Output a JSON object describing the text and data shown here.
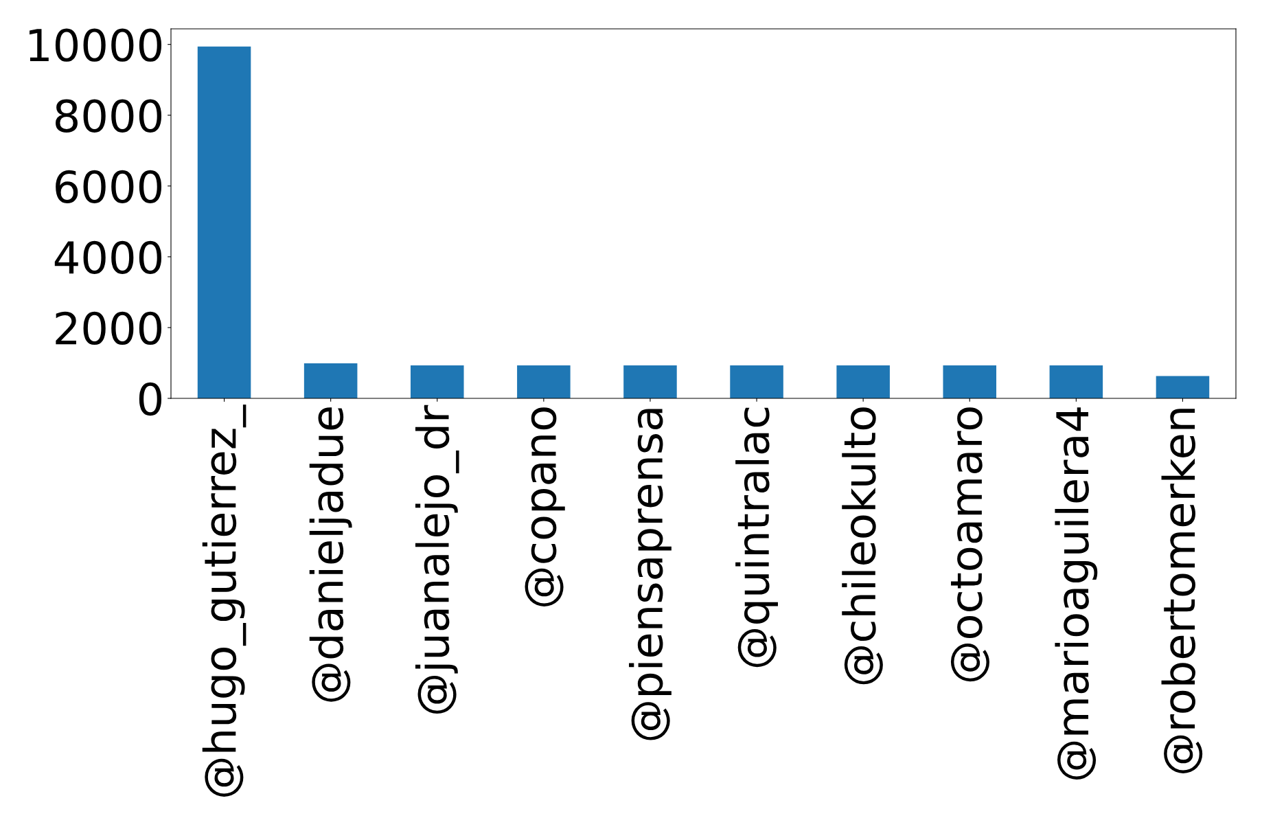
{
  "chart_data": {
    "type": "bar",
    "categories": [
      "@hugo_gutierrez_",
      "@danieljadue",
      "@juanalejo_dr",
      "@copano",
      "@piensaprensa",
      "@quintralac",
      "@chileokulto",
      "@octoamaro",
      "@marioaguilera4",
      "@robertomerken"
    ],
    "values": [
      9940,
      990,
      930,
      930,
      930,
      930,
      930,
      930,
      930,
      630
    ],
    "color": "#1f77b4",
    "ylim": [
      0,
      10440
    ],
    "yticks": [
      0,
      2000,
      4000,
      6000,
      8000,
      10000
    ],
    "grid": false,
    "legend": false
  }
}
